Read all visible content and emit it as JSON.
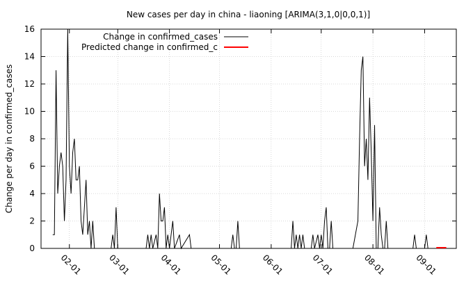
{
  "chart_data": {
    "type": "line",
    "title": "New cases per day in china - liaoning [ARIMA(3,1,0|0,0,1)]",
    "xlabel": "",
    "ylabel": "Change per day in confirmed_cases",
    "ylim": [
      0,
      16
    ],
    "xlim": [
      "2020-01-15",
      "2020-09-20"
    ],
    "grid": true,
    "legend_position": "top-left",
    "y_ticks": [
      "0",
      "2",
      "4",
      "6",
      "8",
      "10",
      "12",
      "14",
      "16"
    ],
    "x_ticks": [
      {
        "date": "2020-02-01",
        "label": "02-01"
      },
      {
        "date": "2020-03-01",
        "label": "03-01"
      },
      {
        "date": "2020-04-01",
        "label": "04-01"
      },
      {
        "date": "2020-05-01",
        "label": "05-01"
      },
      {
        "date": "2020-06-01",
        "label": "06-01"
      },
      {
        "date": "2020-07-01",
        "label": "07-01"
      },
      {
        "date": "2020-08-01",
        "label": "08-01"
      },
      {
        "date": "2020-09-01",
        "label": "09-01"
      }
    ],
    "series": [
      {
        "name": "Change in confirmed_cases",
        "color": "#000000",
        "points": [
          [
            "2020-01-22",
            1
          ],
          [
            "2020-01-23",
            1
          ],
          [
            "2020-01-24",
            13
          ],
          [
            "2020-01-25",
            4
          ],
          [
            "2020-01-26",
            6
          ],
          [
            "2020-01-27",
            7
          ],
          [
            "2020-01-28",
            6
          ],
          [
            "2020-01-29",
            2
          ],
          [
            "2020-01-30",
            5
          ],
          [
            "2020-01-31",
            16
          ],
          [
            "2020-02-01",
            6
          ],
          [
            "2020-02-02",
            4
          ],
          [
            "2020-02-03",
            7
          ],
          [
            "2020-02-04",
            8
          ],
          [
            "2020-02-05",
            5
          ],
          [
            "2020-02-06",
            5
          ],
          [
            "2020-02-07",
            6
          ],
          [
            "2020-02-08",
            2
          ],
          [
            "2020-02-09",
            1
          ],
          [
            "2020-02-10",
            3
          ],
          [
            "2020-02-11",
            5
          ],
          [
            "2020-02-12",
            1
          ],
          [
            "2020-02-13",
            2
          ],
          [
            "2020-02-14",
            0
          ],
          [
            "2020-02-15",
            2
          ],
          [
            "2020-02-16",
            0
          ],
          [
            "2020-02-26",
            0
          ],
          [
            "2020-02-27",
            1
          ],
          [
            "2020-02-28",
            0
          ],
          [
            "2020-02-29",
            3
          ],
          [
            "2020-03-01",
            0
          ],
          [
            "2020-03-18",
            0
          ],
          [
            "2020-03-19",
            1
          ],
          [
            "2020-03-20",
            0
          ],
          [
            "2020-03-21",
            1
          ],
          [
            "2020-03-22",
            0
          ],
          [
            "2020-03-24",
            1
          ],
          [
            "2020-03-25",
            0
          ],
          [
            "2020-03-26",
            4
          ],
          [
            "2020-03-27",
            2
          ],
          [
            "2020-03-28",
            2
          ],
          [
            "2020-03-29",
            3
          ],
          [
            "2020-03-30",
            0
          ],
          [
            "2020-03-31",
            1
          ],
          [
            "2020-04-01",
            0
          ],
          [
            "2020-04-03",
            2
          ],
          [
            "2020-04-04",
            0
          ],
          [
            "2020-04-07",
            1
          ],
          [
            "2020-04-08",
            0
          ],
          [
            "2020-04-13",
            1
          ],
          [
            "2020-04-14",
            0
          ],
          [
            "2020-05-08",
            0
          ],
          [
            "2020-05-09",
            1
          ],
          [
            "2020-05-10",
            0
          ],
          [
            "2020-05-11",
            0
          ],
          [
            "2020-05-12",
            2
          ],
          [
            "2020-05-13",
            0
          ],
          [
            "2020-06-13",
            0
          ],
          [
            "2020-06-14",
            2
          ],
          [
            "2020-06-15",
            0
          ],
          [
            "2020-06-16",
            1
          ],
          [
            "2020-06-17",
            0
          ],
          [
            "2020-06-18",
            1
          ],
          [
            "2020-06-19",
            0
          ],
          [
            "2020-06-20",
            1
          ],
          [
            "2020-06-21",
            0
          ],
          [
            "2020-06-25",
            0
          ],
          [
            "2020-06-26",
            1
          ],
          [
            "2020-06-27",
            0
          ],
          [
            "2020-06-29",
            1
          ],
          [
            "2020-06-30",
            0
          ],
          [
            "2020-07-01",
            1
          ],
          [
            "2020-07-02",
            0
          ],
          [
            "2020-07-03",
            2
          ],
          [
            "2020-07-04",
            3
          ],
          [
            "2020-07-05",
            0
          ],
          [
            "2020-07-06",
            0
          ],
          [
            "2020-07-07",
            2
          ],
          [
            "2020-07-08",
            0
          ],
          [
            "2020-07-20",
            0
          ],
          [
            "2020-07-23",
            2
          ],
          [
            "2020-07-24",
            8
          ],
          [
            "2020-07-25",
            13
          ],
          [
            "2020-07-26",
            14
          ],
          [
            "2020-07-27",
            6
          ],
          [
            "2020-07-28",
            8
          ],
          [
            "2020-07-29",
            5
          ],
          [
            "2020-07-30",
            11
          ],
          [
            "2020-07-31",
            7
          ],
          [
            "2020-08-01",
            2
          ],
          [
            "2020-08-02",
            9
          ],
          [
            "2020-08-03",
            0
          ],
          [
            "2020-08-04",
            0
          ],
          [
            "2020-08-05",
            3
          ],
          [
            "2020-08-06",
            1
          ],
          [
            "2020-08-07",
            0
          ],
          [
            "2020-08-08",
            0
          ],
          [
            "2020-08-09",
            2
          ],
          [
            "2020-08-10",
            0
          ],
          [
            "2020-08-25",
            0
          ],
          [
            "2020-08-26",
            1
          ],
          [
            "2020-08-27",
            0
          ],
          [
            "2020-09-01",
            0
          ],
          [
            "2020-09-02",
            1
          ],
          [
            "2020-09-03",
            0
          ]
        ]
      },
      {
        "name": "Predicted change in confirmed_c",
        "color": "#ff0000",
        "points": [
          [
            "2020-09-08",
            0.05
          ],
          [
            "2020-09-14",
            0.05
          ]
        ]
      }
    ]
  }
}
